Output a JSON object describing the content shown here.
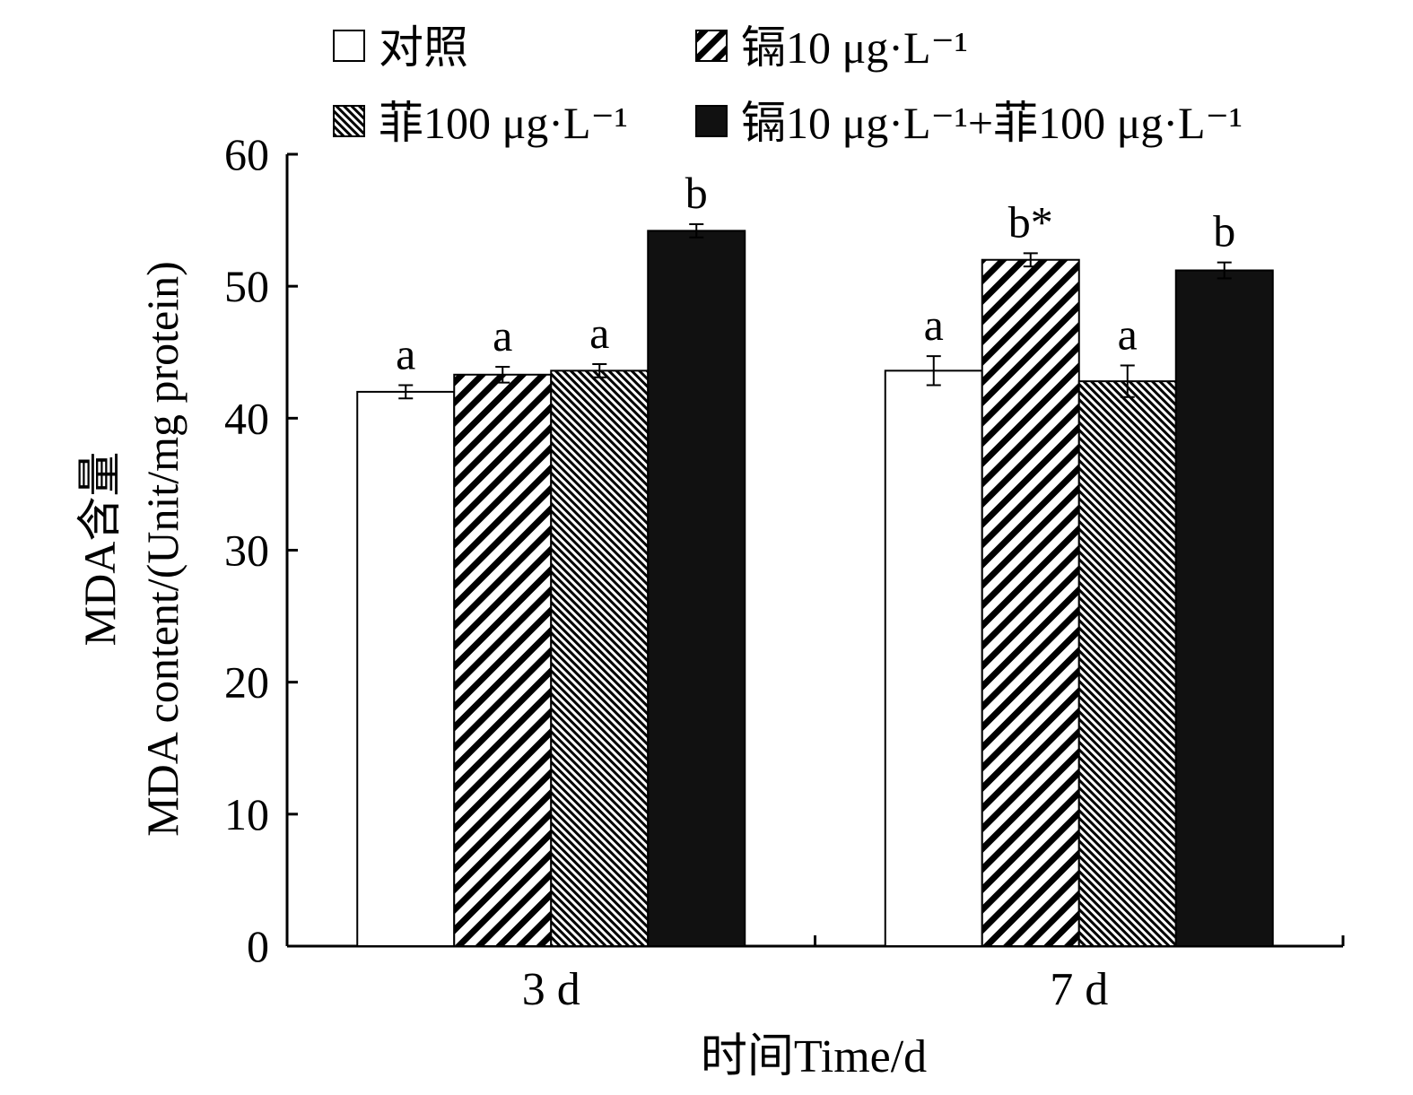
{
  "chart_data": {
    "type": "bar",
    "categories": [
      "3 d",
      "7 d"
    ],
    "series": [
      {
        "name": "对照",
        "pattern": "none",
        "values": [
          42.0,
          43.6
        ],
        "errors": [
          0.5,
          1.1
        ],
        "labels": [
          "a",
          "a"
        ]
      },
      {
        "name": "镉10 μg·L⁻¹",
        "pattern": "hatch-wide",
        "values": [
          43.3,
          52.0
        ],
        "errors": [
          0.6,
          0.5
        ],
        "labels": [
          "a",
          "b*"
        ]
      },
      {
        "name": "菲100 μg·L⁻¹",
        "pattern": "hatch-fine",
        "values": [
          43.6,
          42.8
        ],
        "errors": [
          0.5,
          1.2
        ],
        "labels": [
          "a",
          "a"
        ]
      },
      {
        "name": "镉10 μg·L⁻¹+菲100 μg·L⁻¹",
        "pattern": "solid",
        "values": [
          54.2,
          51.2
        ],
        "errors": [
          0.5,
          0.6
        ],
        "labels": [
          "b",
          "b"
        ]
      }
    ],
    "ylabel_line1": "MDA含量",
    "ylabel_line2": "MDA content/(Unit/mg protein)",
    "xlabel": "时间Time/d",
    "ylim": [
      0,
      60
    ],
    "yticks": [
      0,
      10,
      20,
      30,
      40,
      50,
      60
    ],
    "grid": false,
    "legend_position": "top"
  }
}
